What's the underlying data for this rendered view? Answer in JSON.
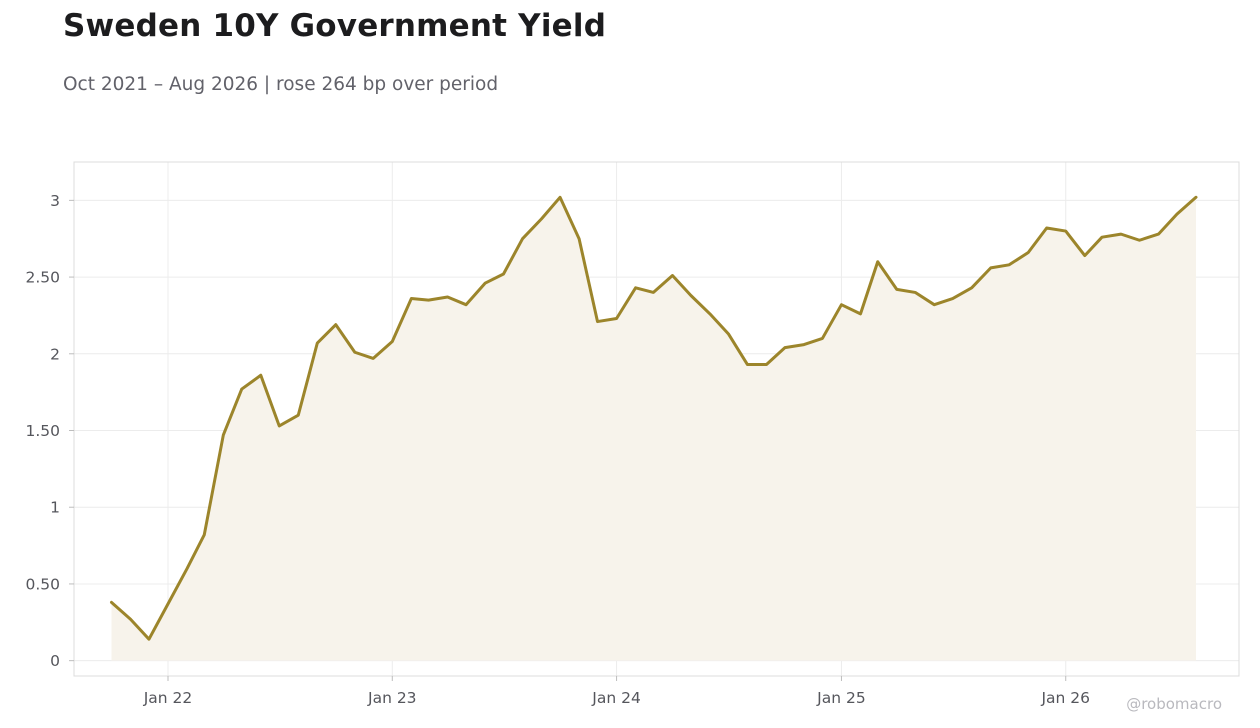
{
  "header": {
    "title": "Sweden 10Y Government Yield",
    "subtitle": "Oct 2021 – Aug 2026 | rose 264 bp over period"
  },
  "watermark": "@robomacro",
  "colors": {
    "line": "#9c852b",
    "area": "#f7f3eb",
    "grid": "#ececec",
    "frame": "#dcdcdc"
  },
  "chart_data": {
    "type": "area",
    "title": "Sweden 10Y Government Yield",
    "subtitle": "Oct 2021 – Aug 2026 | rose 264 bp over period",
    "xlabel": "",
    "ylabel": "",
    "grid": true,
    "legend": "none",
    "ylim": [
      -0.1,
      3.25
    ],
    "xlim": [
      "2021-08-01",
      "2026-10-10"
    ],
    "y_ticks": [
      0,
      0.5,
      1,
      1.5,
      2,
      2.5,
      3
    ],
    "y_tick_labels": [
      "0",
      "0.50",
      "1",
      "1.50",
      "2",
      "2.50",
      "3"
    ],
    "x_ticks": [
      "2022-01-01",
      "2023-01-01",
      "2024-01-01",
      "2025-01-01",
      "2026-01-01"
    ],
    "x_tick_labels": [
      "Jan 22",
      "Jan 23",
      "Jan 24",
      "Jan 25",
      "Jan 26"
    ],
    "series": [
      {
        "x": [
          "2021-10-01",
          "2021-11-01",
          "2021-12-01",
          "2022-01-01",
          "2022-02-01",
          "2022-03-01",
          "2022-04-01",
          "2022-05-01",
          "2022-06-01",
          "2022-07-01",
          "2022-08-01",
          "2022-09-01",
          "2022-10-01",
          "2022-11-01",
          "2022-12-01",
          "2023-01-01",
          "2023-02-01",
          "2023-03-01",
          "2023-04-01",
          "2023-05-01",
          "2023-06-01",
          "2023-07-01",
          "2023-08-01",
          "2023-09-01",
          "2023-10-01",
          "2023-11-01",
          "2023-12-01",
          "2024-01-01",
          "2024-02-01",
          "2024-03-01",
          "2024-04-01",
          "2024-05-01",
          "2024-06-01",
          "2024-07-01",
          "2024-08-01",
          "2024-09-01",
          "2024-10-01",
          "2024-11-01",
          "2024-12-01",
          "2025-01-01",
          "2025-02-01",
          "2025-03-01",
          "2025-04-01",
          "2025-05-01",
          "2025-06-01",
          "2025-07-01",
          "2025-08-01",
          "2025-09-01",
          "2025-10-01",
          "2025-11-01",
          "2025-12-01",
          "2026-01-01",
          "2026-02-01",
          "2026-03-01",
          "2026-04-01",
          "2026-05-01",
          "2026-06-01",
          "2026-07-01",
          "2026-08-01"
        ],
        "values": [
          0.38,
          0.27,
          0.14,
          0.37,
          0.6,
          0.82,
          1.47,
          1.77,
          1.86,
          1.53,
          1.6,
          2.07,
          2.19,
          2.01,
          1.97,
          2.08,
          2.36,
          2.35,
          2.37,
          2.32,
          2.46,
          2.52,
          2.75,
          2.88,
          3.02,
          2.75,
          2.21,
          2.23,
          2.43,
          2.4,
          2.51,
          2.38,
          2.26,
          2.13,
          1.93,
          1.93,
          2.04,
          2.06,
          2.1,
          2.32,
          2.26,
          2.6,
          2.42,
          2.4,
          2.32,
          2.36,
          2.43,
          2.56,
          2.58,
          2.66,
          2.82,
          2.8,
          2.64,
          2.76,
          2.78,
          2.74,
          2.78,
          2.91,
          3.02
        ]
      }
    ]
  }
}
